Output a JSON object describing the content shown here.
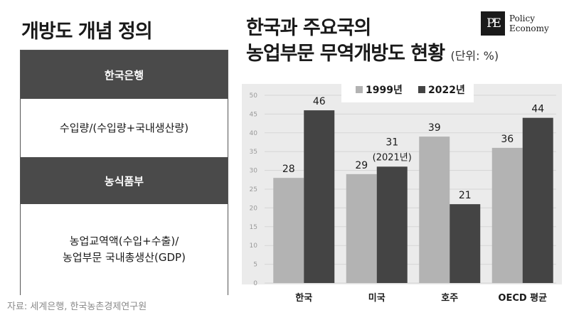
{
  "left_title": "개방도 개념 정의",
  "definitions": [
    {
      "header": "한국은행",
      "formula_lines": [
        "수입량/(수입량+국내생산량)"
      ]
    },
    {
      "header": "농식품부",
      "formula_lines": [
        "농업교역액(수입+수출)/",
        "농업부문 국내총생산(GDP)"
      ]
    }
  ],
  "source": "자료: 세계은행, 한국농촌경제연구원",
  "logo": {
    "mark": "PE",
    "line1": "Policy",
    "line2": "Economy"
  },
  "chart_data": {
    "type": "bar",
    "title_lines": [
      "한국과 주요국의",
      "농업부문 무역개방도 현황"
    ],
    "unit": "(단위: %)",
    "categories": [
      "한국",
      "미국",
      "호주",
      "OECD 평균"
    ],
    "series": [
      {
        "name": "1999년",
        "values": [
          28,
          29,
          39,
          36
        ],
        "color": "#b3b3b3"
      },
      {
        "name": "2022년",
        "values": [
          46,
          31,
          21,
          44
        ],
        "color": "#444444"
      }
    ],
    "annotations": [
      {
        "category": "미국",
        "series": "2022년",
        "text": "(2021년)"
      }
    ],
    "yticks": [
      0,
      5,
      10,
      15,
      20,
      25,
      30,
      35,
      40,
      45,
      50
    ],
    "ylim": [
      0,
      50
    ],
    "legend_position": "top-center",
    "grid": true,
    "background": "#ebebeb"
  }
}
